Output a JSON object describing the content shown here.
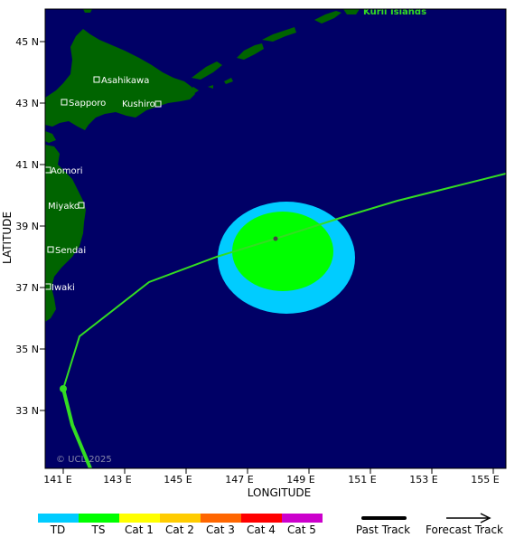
{
  "map": {
    "water_color": "#000066",
    "land_color": "#006400",
    "track_color": "#33dd22",
    "td_color": "#00ccff",
    "ts_color": "#00ff00"
  },
  "axes": {
    "xlabel": "LONGITUDE",
    "ylabel": "LATITUDE",
    "lon_ticks": [
      "141 E",
      "143 E",
      "145 E",
      "147 E",
      "149 E",
      "151 E",
      "153 E",
      "155 E"
    ],
    "lat_ticks": [
      "45 N",
      "43 N",
      "41 N",
      "39 N",
      "37 N",
      "35 N",
      "33 N"
    ]
  },
  "places": {
    "region_label": "Kuril Islands",
    "cities": [
      "Asahikawa",
      "Sapporo",
      "Kushiro",
      "Aomori",
      "Miyako",
      "Sendai",
      "Iwaki"
    ]
  },
  "copyright": "© UCL 2025",
  "legend": {
    "categories": [
      {
        "label": "TD",
        "color": "#00ccff"
      },
      {
        "label": "TS",
        "color": "#00ff00"
      },
      {
        "label": "Cat 1",
        "color": "#ffff00"
      },
      {
        "label": "Cat 2",
        "color": "#ffcc00"
      },
      {
        "label": "Cat 3",
        "color": "#ff6600"
      },
      {
        "label": "Cat 4",
        "color": "#ff0000"
      },
      {
        "label": "Cat 5",
        "color": "#cc00cc"
      }
    ],
    "past_track": "Past Track",
    "forecast_track": "Forecast Track"
  }
}
